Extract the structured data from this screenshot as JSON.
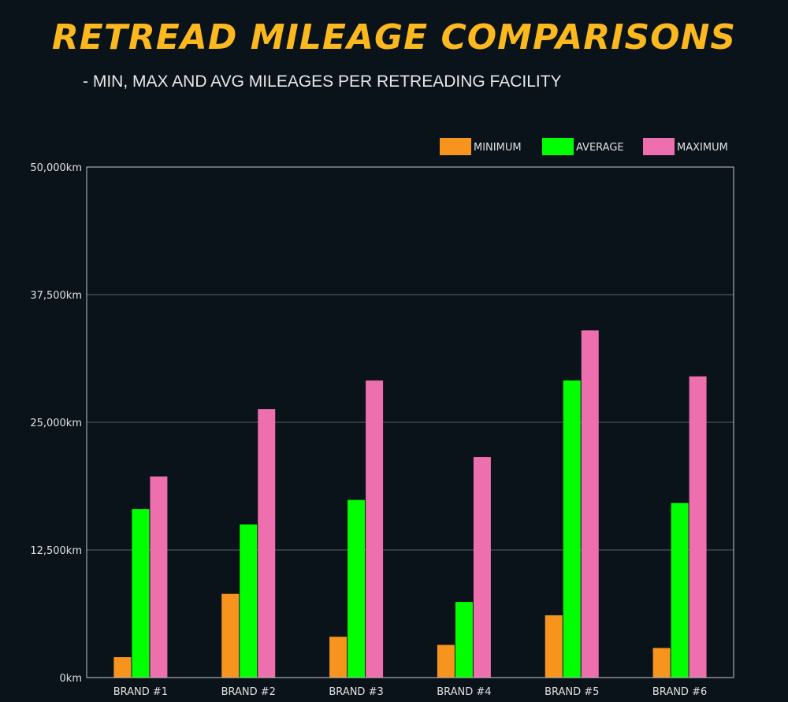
{
  "colors": {
    "background": "#0a121a",
    "title": "#fbb81f",
    "minimum": "#f7941d",
    "average": "#00ff00",
    "maximum": "#ee6fad",
    "grid": "#5a6168"
  },
  "chart_data": {
    "type": "bar",
    "title": "RETREAD MILEAGE COMPARISONS",
    "subtitle": "- MIN, MAX AND AVG MILEAGES PER RETREADING FACILITY",
    "xlabel": "",
    "ylabel": "",
    "categories": [
      "BRAND #1",
      "BRAND #2",
      "BRAND #3",
      "BRAND #4",
      "BRAND #5",
      "BRAND #6"
    ],
    "series": [
      {
        "name": "MINIMUM",
        "color": "#f7941d",
        "values": [
          2000,
          8200,
          4000,
          3200,
          6100,
          2900
        ]
      },
      {
        "name": "AVERAGE",
        "color": "#00ff00",
        "values": [
          16500,
          15000,
          17400,
          7400,
          29100,
          17100
        ]
      },
      {
        "name": "MAXIMUM",
        "color": "#ee6fad",
        "values": [
          19700,
          26300,
          29100,
          21600,
          34000,
          29500
        ]
      }
    ],
    "ylim": [
      0,
      50000
    ],
    "yticks": [
      0,
      12500,
      25000,
      37500,
      50000
    ],
    "ytick_labels": [
      "0km",
      "12,500km",
      "25,000km",
      "37,500km",
      "50,000km"
    ],
    "grid": true,
    "legend_position": "top-right"
  }
}
